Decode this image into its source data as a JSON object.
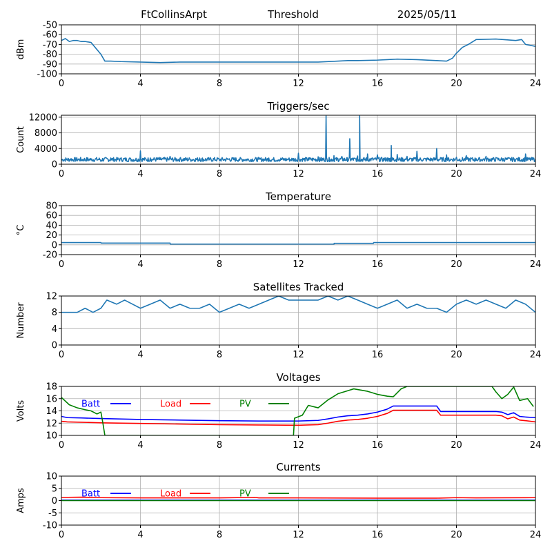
{
  "header": {
    "station": "FtCollinsArpt",
    "mode": "Threshold",
    "date": "2025/05/11"
  },
  "colors": {
    "series": "#1f77b4",
    "batt": "#0000ff",
    "load": "#ff0000",
    "pv": "#008000",
    "grid": "#b0b0b0"
  },
  "chart_data": [
    {
      "id": "signal",
      "type": "line",
      "title": "",
      "xlabel": "",
      "ylabel": "dBm",
      "xlim": [
        0,
        24
      ],
      "ylim": [
        -100,
        -50
      ],
      "xticks": [
        0,
        4,
        8,
        12,
        16,
        20,
        24
      ],
      "yticks": [
        -100,
        -90,
        -80,
        -70,
        -60,
        -50
      ],
      "grid": true,
      "series": [
        {
          "color": "#1f77b4",
          "x": [
            0,
            0.2,
            0.4,
            0.6,
            0.8,
            1.0,
            1.2,
            1.5,
            2.0,
            2.2,
            2.5,
            3.0,
            4.0,
            5.0,
            6.0,
            7.0,
            8.0,
            9.0,
            10.0,
            11.0,
            12.0,
            13.0,
            14.0,
            14.5,
            15.0,
            16.0,
            16.5,
            17.0,
            18.0,
            19.0,
            19.5,
            19.8,
            20.0,
            20.3,
            20.6,
            21.0,
            22.0,
            23.0,
            23.3,
            23.5,
            24.0
          ],
          "y": [
            -66,
            -64,
            -67,
            -66,
            -66,
            -67,
            -67,
            -68,
            -80,
            -87,
            -87,
            -87.5,
            -88,
            -88.5,
            -88,
            -88,
            -88,
            -88,
            -88,
            -88,
            -88,
            -88,
            -87,
            -86.5,
            -86.5,
            -86,
            -85.5,
            -85,
            -85.5,
            -86.5,
            -87,
            -84,
            -79,
            -73,
            -70,
            -65,
            -64.5,
            -66,
            -65,
            -70,
            -72
          ]
        }
      ]
    },
    {
      "id": "triggers",
      "type": "line",
      "title": "Triggers/sec",
      "xlabel": "",
      "ylabel": "Count",
      "xlim": [
        0,
        24
      ],
      "ylim": [
        0,
        12500
      ],
      "xticks": [
        0,
        4,
        8,
        12,
        16,
        20,
        24
      ],
      "yticks": [
        0,
        4000,
        8000,
        12000
      ],
      "grid": true,
      "baseline": 1200,
      "series": [
        {
          "color": "#1f77b4",
          "x": [
            0,
            0.5,
            1.0,
            1.5,
            2.0,
            2.5,
            3.0,
            3.5,
            4.0,
            4.5,
            5.0,
            5.5,
            6.0,
            6.5,
            7.0,
            7.5,
            8.0,
            8.5,
            9.0,
            9.5,
            10.0,
            10.5,
            11.0,
            11.5,
            12.0,
            12.5,
            13.0,
            13.4,
            13.8,
            14.2,
            14.6,
            15.0,
            15.1,
            15.5,
            16.0,
            16.5,
            16.7,
            17.0,
            17.5,
            18.0,
            18.5,
            19.0,
            19.5,
            20.0,
            20.5,
            21.0,
            21.5,
            22.0,
            22.5,
            23.0,
            23.5,
            24.0
          ],
          "y": [
            1000,
            1400,
            900,
            1100,
            700,
            1600,
            1400,
            1500,
            3400,
            1600,
            1200,
            2000,
            1500,
            1300,
            1600,
            1200,
            1000,
            1400,
            1300,
            900,
            1200,
            1600,
            1100,
            1400,
            2800,
            1600,
            1900,
            12300,
            2200,
            2000,
            6500,
            2100,
            12300,
            2600,
            2400,
            1600,
            4800,
            2500,
            2000,
            3300,
            1500,
            4000,
            2400,
            1800,
            2200,
            1400,
            2000,
            1700,
            1500,
            1300,
            2600,
            1300
          ]
        }
      ]
    },
    {
      "id": "temperature",
      "type": "line",
      "title": "Temperature",
      "xlabel": "",
      "ylabel": "°C",
      "xlim": [
        0,
        24
      ],
      "ylim": [
        -20,
        80
      ],
      "xticks": [
        0,
        4,
        8,
        12,
        16,
        20,
        24
      ],
      "yticks": [
        -20,
        0,
        20,
        40,
        60,
        80
      ],
      "grid": true,
      "series": [
        {
          "color": "#1f77b4",
          "x": [
            0,
            2.0,
            2.01,
            5.5,
            5.51,
            13.8,
            13.81,
            15.8,
            15.81,
            24
          ],
          "y": [
            4.5,
            4.5,
            3.5,
            3.5,
            1.5,
            1.5,
            3,
            3,
            4.5,
            4.5
          ]
        }
      ]
    },
    {
      "id": "satellites",
      "type": "line",
      "title": "Satellites Tracked",
      "xlabel": "",
      "ylabel": "Number",
      "xlim": [
        0,
        24
      ],
      "ylim": [
        0,
        12
      ],
      "xticks": [
        0,
        4,
        8,
        12,
        16,
        20,
        24
      ],
      "yticks": [
        0,
        4,
        8,
        12
      ],
      "grid": true,
      "series": [
        {
          "color": "#1f77b4",
          "x": [
            0,
            0.8,
            1.2,
            1.6,
            2.0,
            2.3,
            2.8,
            3.2,
            3.6,
            4.0,
            4.5,
            5.0,
            5.5,
            6.0,
            6.5,
            7.0,
            7.5,
            8.0,
            8.5,
            9.0,
            9.5,
            10.0,
            10.5,
            11.0,
            11.5,
            12.0,
            12.5,
            13.0,
            13.5,
            14.0,
            14.5,
            15.0,
            15.5,
            16.0,
            16.5,
            17.0,
            17.5,
            18.0,
            18.5,
            19.0,
            19.5,
            20.0,
            20.5,
            21.0,
            21.5,
            22.0,
            22.5,
            23.0,
            23.5,
            24.0
          ],
          "y": [
            8,
            8,
            9,
            8,
            9,
            11,
            10,
            11,
            10,
            9,
            10,
            11,
            9,
            10,
            9,
            9,
            10,
            8,
            9,
            10,
            9,
            10,
            11,
            12,
            11,
            11,
            11,
            11,
            12,
            11,
            12,
            11,
            10,
            9,
            10,
            11,
            9,
            10,
            9,
            9,
            8,
            10,
            11,
            10,
            11,
            10,
            9,
            11,
            10,
            8
          ]
        }
      ]
    },
    {
      "id": "voltages",
      "type": "line",
      "title": "Voltages",
      "xlabel": "",
      "ylabel": "Volts",
      "xlim": [
        0,
        24
      ],
      "ylim": [
        10,
        18
      ],
      "xticks": [
        0,
        4,
        8,
        12,
        16,
        20,
        24
      ],
      "yticks": [
        10,
        12,
        14,
        16,
        18
      ],
      "grid": true,
      "legend": "top-left inline",
      "series": [
        {
          "name": "Batt",
          "color": "#0000ff",
          "x": [
            0,
            0.3,
            1.0,
            2.0,
            4.0,
            6.0,
            8.0,
            10.0,
            12.0,
            13.0,
            13.5,
            14.0,
            14.5,
            15.0,
            15.5,
            16.0,
            16.5,
            16.8,
            17.5,
            18.5,
            19.0,
            19.2,
            20.0,
            21.0,
            22.0,
            22.3,
            22.6,
            22.9,
            23.2,
            23.5,
            24.0
          ],
          "y": [
            13.1,
            12.9,
            12.85,
            12.75,
            12.6,
            12.5,
            12.4,
            12.35,
            12.35,
            12.45,
            12.7,
            13.0,
            13.2,
            13.3,
            13.5,
            13.8,
            14.3,
            14.8,
            14.8,
            14.8,
            14.8,
            13.9,
            13.9,
            13.9,
            13.9,
            13.8,
            13.4,
            13.7,
            13.1,
            13.0,
            12.9
          ]
        },
        {
          "name": "Load",
          "color": "#ff0000",
          "x": [
            0,
            0.3,
            1.0,
            2.0,
            4.0,
            6.0,
            8.0,
            10.0,
            12.0,
            13.0,
            13.5,
            14.0,
            14.5,
            15.0,
            15.5,
            16.0,
            16.5,
            16.8,
            17.5,
            18.5,
            19.0,
            19.2,
            20.0,
            21.0,
            22.0,
            22.3,
            22.6,
            22.9,
            23.2,
            23.5,
            24.0
          ],
          "y": [
            12.3,
            12.2,
            12.15,
            12.05,
            11.95,
            11.85,
            11.75,
            11.7,
            11.65,
            11.75,
            12.0,
            12.3,
            12.5,
            12.6,
            12.8,
            13.1,
            13.6,
            14.1,
            14.1,
            14.1,
            14.1,
            13.3,
            13.3,
            13.3,
            13.3,
            13.2,
            12.7,
            13.0,
            12.5,
            12.4,
            12.2
          ]
        },
        {
          "name": "PV",
          "color": "#008000",
          "x": [
            0,
            0.4,
            0.8,
            1.2,
            1.5,
            1.8,
            2.0,
            2.1,
            2.2,
            11.75,
            11.8,
            12.2,
            12.5,
            13.0,
            13.5,
            14.0,
            14.5,
            14.8,
            15.5,
            16.0,
            16.5,
            16.8,
            17.2,
            17.5,
            21.8,
            22.0,
            22.3,
            22.6,
            22.9,
            23.2,
            23.6,
            23.9
          ],
          "y": [
            16.2,
            15.0,
            14.5,
            14.2,
            14.0,
            13.5,
            13.8,
            12.0,
            10.0,
            10.0,
            12.8,
            13.3,
            14.9,
            14.5,
            15.8,
            16.8,
            17.3,
            17.6,
            17.2,
            16.7,
            16.4,
            16.3,
            17.6,
            18.0,
            18.0,
            17.1,
            16.0,
            16.7,
            17.9,
            15.7,
            16.0,
            14.7
          ]
        }
      ]
    },
    {
      "id": "currents",
      "type": "line",
      "title": "Currents",
      "xlabel": "",
      "ylabel": "Amps",
      "xlim": [
        0,
        24
      ],
      "ylim": [
        -10,
        10
      ],
      "xticks": [
        0,
        4,
        8,
        12,
        16,
        20,
        24
      ],
      "yticks": [
        -10,
        -5,
        0,
        5,
        10
      ],
      "grid": true,
      "legend": "top-left inline",
      "series": [
        {
          "name": "Batt",
          "color": "#0000ff",
          "x": [
            0,
            24
          ],
          "y": [
            0.2,
            0.2
          ]
        },
        {
          "name": "Load",
          "color": "#ff0000",
          "x": [
            0,
            1.0,
            2.0,
            4.0,
            8.0,
            9.8,
            10.0,
            12.0,
            16.0,
            19.0,
            20.0,
            21.0,
            24.0
          ],
          "y": [
            1.3,
            1.4,
            1.2,
            1.1,
            1.1,
            1.3,
            1.1,
            1.1,
            1.0,
            1.0,
            1.2,
            1.1,
            1.2
          ]
        },
        {
          "name": "PV",
          "color": "#008000",
          "x": [
            0,
            24
          ],
          "y": [
            0.0,
            0.0
          ]
        }
      ]
    }
  ]
}
